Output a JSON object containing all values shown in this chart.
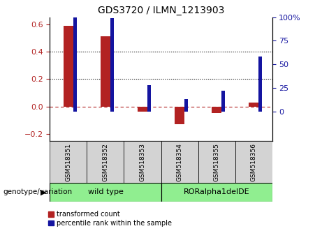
{
  "title": "GDS3720 / ILMN_1213903",
  "categories": [
    "GSM518351",
    "GSM518352",
    "GSM518353",
    "GSM518354",
    "GSM518355",
    "GSM518356"
  ],
  "red_values": [
    0.59,
    0.51,
    -0.04,
    -0.13,
    -0.05,
    0.03
  ],
  "blue_values": [
    100,
    99,
    28,
    13,
    22,
    58
  ],
  "ylim_left": [
    -0.25,
    0.65
  ],
  "ylim_right": [
    -31.25,
    125
  ],
  "yticks_left": [
    -0.2,
    0.0,
    0.2,
    0.4,
    0.6
  ],
  "yticks_right": [
    0,
    25,
    50,
    75,
    100
  ],
  "ytick_right_labels": [
    "0",
    "25",
    "50",
    "75",
    "100%"
  ],
  "hlines": [
    0.2,
    0.4
  ],
  "hline_zero": 0.0,
  "red_color": "#B22222",
  "blue_color": "#1414A0",
  "dashed_line_color": "#B22222",
  "dot_line_color": "#000000",
  "group1_label": "wild type",
  "group2_label": "RORalpha1delDE",
  "group1_color": "#90EE90",
  "group2_color": "#90EE90",
  "legend_red": "transformed count",
  "legend_blue": "percentile rank within the sample",
  "genotype_label": "genotype/variation",
  "red_bar_width": 0.25,
  "blue_bar_width": 0.1
}
